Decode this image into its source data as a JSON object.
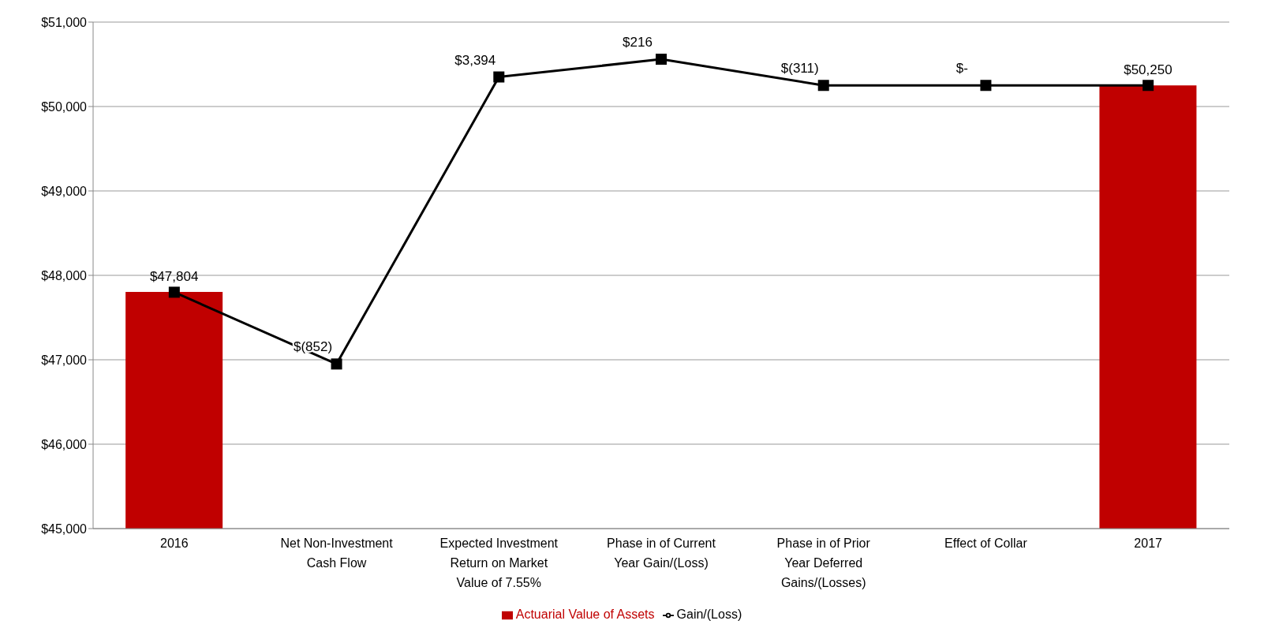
{
  "chart_data": {
    "type": "bar",
    "categories": [
      "2016",
      "Net Non-Investment Cash Flow",
      "Expected Investment Return on Market Value of 7.55%",
      "Phase in of Current Year Gain/(Loss)",
      "Phase in of Prior Year Deferred Gains/(Losses)",
      "Effect of Collar",
      "2017"
    ],
    "series": [
      {
        "name": "Actuarial Value of Assets",
        "color": "#c00000",
        "values": [
          47804,
          null,
          null,
          null,
          null,
          null,
          50250
        ],
        "value_labels": [
          "$47,804",
          null,
          null,
          null,
          null,
          null,
          "$50,250"
        ]
      },
      {
        "name": "Gain/(Loss)",
        "type": "line",
        "color": "#000000",
        "values": [
          47800,
          46950,
          50350,
          50560,
          50250,
          50250,
          50250
        ]
      }
    ],
    "annotations": [
      {
        "text": "$(852)",
        "x": "Net Non-Investment Cash Flow",
        "y": 46950
      },
      {
        "text": "$3,394",
        "x": "Expected Investment Return on Market Value of 7.55%",
        "y": 50350
      },
      {
        "text": "$216",
        "x": "Phase in of Current Year Gain/(Loss)",
        "y": 50560
      },
      {
        "text": "$(311)",
        "x": "Phase in of Prior Year Deferred Gains/(Losses)",
        "y": 50250
      },
      {
        "text": "$-",
        "x": "Effect of Collar",
        "y": 50250
      }
    ],
    "ylim": [
      45000,
      51000
    ],
    "yticks": [
      {
        "value": 45000,
        "label": "$45,000"
      },
      {
        "value": 46000,
        "label": "$46,000"
      },
      {
        "value": 47000,
        "label": "$47,000"
      },
      {
        "value": 48000,
        "label": "$48,000"
      },
      {
        "value": 49000,
        "label": "$49,000"
      },
      {
        "value": 50000,
        "label": "$50,000"
      },
      {
        "value": 51000,
        "label": "$51,000"
      }
    ],
    "grid": "y",
    "legend": "bottom",
    "marker": "square",
    "line_style": "solid"
  }
}
